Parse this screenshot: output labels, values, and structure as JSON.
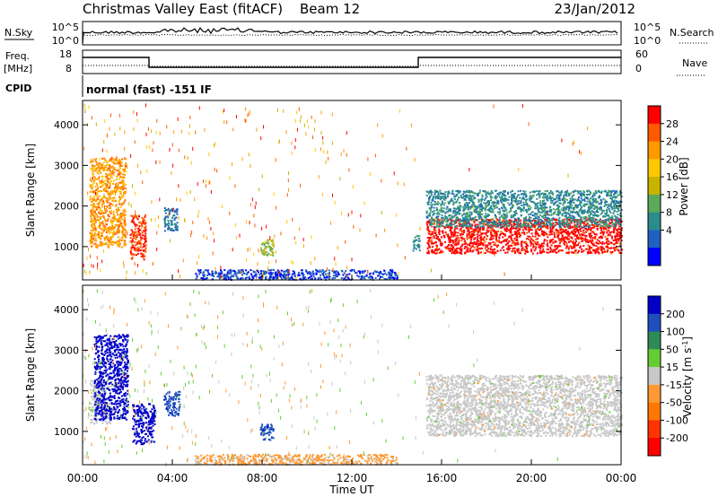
{
  "header": {
    "title": "Christmas Valley East (fitACF)",
    "beam": "Beam 12",
    "date": "23/Jan/2012"
  },
  "top_panels": {
    "nsky_label": "N.Sky",
    "nsearch_label": "N.Search",
    "noise_ticks": [
      "10^5",
      "10^0"
    ],
    "freq_label": "Freq.",
    "freq_unit": "[MHz]",
    "freq_ticks": [
      "18",
      "8"
    ],
    "nave_label": "Nave",
    "nave_ticks": [
      "60",
      "0"
    ],
    "cpid_label": "CPID",
    "cpid_text": "normal (fast) -151 IF"
  },
  "colorbars": {
    "power": {
      "label": "Power [dB]",
      "ticks": [
        "28",
        "24",
        "20",
        "16",
        "12",
        "8",
        "4"
      ],
      "colors": [
        "#ff0000",
        "#ff5a00",
        "#ff9900",
        "#ffc800",
        "#c8b400",
        "#5aaa5a",
        "#2a8c8c",
        "#2060c0",
        "#0000ff"
      ]
    },
    "velocity": {
      "label": "Velocity [m s",
      "label_exp": "-1",
      "label_close": "]",
      "ticks": [
        "200",
        "100",
        "50",
        "15",
        "-15",
        "-50",
        "-100",
        "-200"
      ],
      "colors": [
        "#0000c8",
        "#1f4fbf",
        "#2e8b57",
        "#66cc33",
        "#c8c8c8",
        "#ff9933",
        "#ff7700",
        "#ff3300",
        "#ff0000"
      ]
    }
  },
  "axes": {
    "ylabel": "Slant Range [km]",
    "xlabel": "Time UT",
    "yticks": [
      "4000",
      "3000",
      "2000",
      "1000"
    ],
    "xticks": [
      "00:00",
      "04:00",
      "08:00",
      "12:00",
      "16:00",
      "20:00",
      "00:00"
    ]
  },
  "chart_data": [
    {
      "type": "heatmap",
      "title": "Christmas Valley East (fitACF) Beam 12 23/Jan/2012",
      "xlabel": "Time UT",
      "ylabel": "Slant Range [km]",
      "xlim": [
        0,
        24
      ],
      "ylim": [
        180,
        4600
      ],
      "colorbar": "Power [dB]",
      "regions": [
        {
          "t0": 0.3,
          "t1": 1.9,
          "r0": 1000,
          "r1": 3200,
          "value_db": 22
        },
        {
          "t0": 2.1,
          "t1": 2.8,
          "r0": 700,
          "r1": 1800,
          "value_db": 26
        },
        {
          "t0": 3.6,
          "t1": 4.2,
          "r0": 1400,
          "r1": 2000,
          "value_db": 8
        },
        {
          "t0": 7.9,
          "t1": 8.5,
          "r0": 800,
          "r1": 1200,
          "value_db": 14
        },
        {
          "t0": 14.7,
          "t1": 15.0,
          "r0": 900,
          "r1": 1300,
          "value_db": 10
        },
        {
          "t0": 15.3,
          "t1": 24.0,
          "r0": 850,
          "r1": 1700,
          "value_db": 28
        },
        {
          "t0": 15.3,
          "t1": 24.0,
          "r0": 1500,
          "r1": 2400,
          "value_db": 10
        },
        {
          "t0": 5.0,
          "t1": 14.0,
          "r0": 200,
          "r1": 450,
          "value_db": 6
        }
      ]
    },
    {
      "type": "heatmap",
      "title": "Christmas Valley East (fitACF) Beam 12 23/Jan/2012",
      "xlabel": "Time UT",
      "ylabel": "Slant Range [km]",
      "xlim": [
        0,
        24
      ],
      "ylim": [
        180,
        4600
      ],
      "colorbar": "Velocity [m s-1]",
      "regions": [
        {
          "t0": 0.3,
          "t1": 1.2,
          "r0": 1200,
          "r1": 2300,
          "value_ms": 0
        },
        {
          "t0": 0.5,
          "t1": 2.0,
          "r0": 1300,
          "r1": 3400,
          "value_ms": 200
        },
        {
          "t0": 2.2,
          "t1": 3.2,
          "r0": 700,
          "r1": 1700,
          "value_ms": 200
        },
        {
          "t0": 3.6,
          "t1": 4.3,
          "r0": 1400,
          "r1": 2000,
          "value_ms": 150
        },
        {
          "t0": 7.9,
          "t1": 8.5,
          "r0": 800,
          "r1": 1200,
          "value_ms": 150
        },
        {
          "t0": 15.3,
          "t1": 24.0,
          "r0": 900,
          "r1": 2400,
          "value_ms": 0
        },
        {
          "t0": 5.0,
          "t1": 14.0,
          "r0": 200,
          "r1": 450,
          "value_ms": -40
        }
      ]
    }
  ]
}
